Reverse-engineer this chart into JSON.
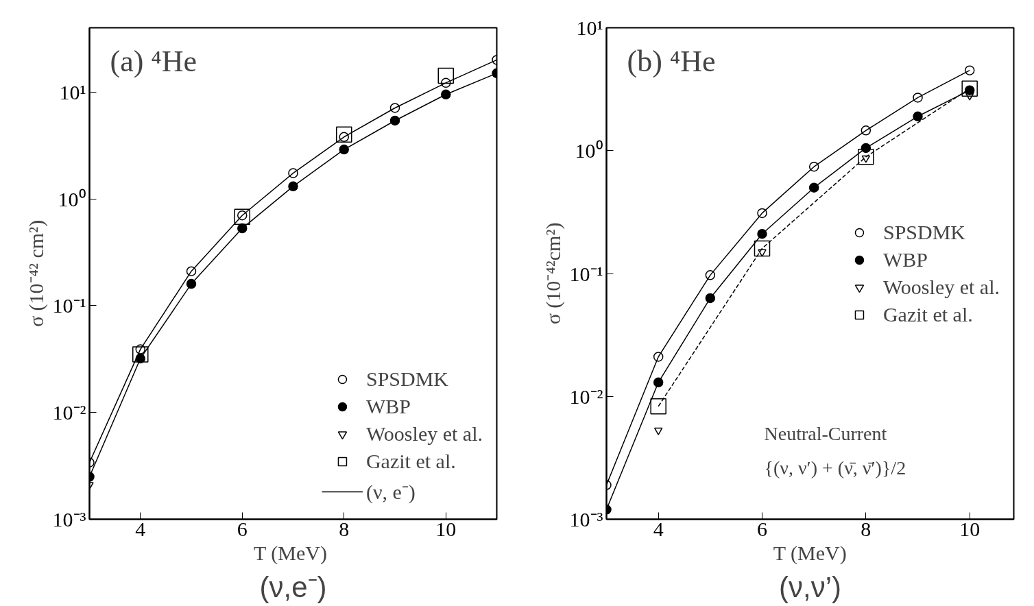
{
  "chart_data": [
    {
      "type": "scatter",
      "title": "(ν,e⁻)",
      "xlabel": "T  (MeV)",
      "ylabel": "σ (10⁻⁴² cm²)",
      "log": "y",
      "annotations": [
        "(a)  ⁴He"
      ],
      "xlim": [
        3,
        11
      ],
      "xticks": [
        4,
        6,
        8,
        10
      ],
      "ylim": [
        0.001,
        40
      ],
      "yticks": [
        {
          "value": 0.001,
          "label": "10⁻³"
        },
        {
          "value": 0.01,
          "label": "10⁻²"
        },
        {
          "value": 0.1,
          "label": "10⁻¹"
        },
        {
          "value": 1,
          "label": "10⁰"
        },
        {
          "value": 10,
          "label": "10¹"
        }
      ],
      "grid": false,
      "legend": "bottom right",
      "series": [
        {
          "name": "SPSDMK",
          "marker": "circle",
          "color": "#000000",
          "x": [
            3,
            4,
            5,
            6,
            7,
            8,
            9,
            10,
            11
          ],
          "values": [
            0.0034,
            0.039,
            0.21,
            0.7,
            1.74,
            3.8,
            7.1,
            12.2,
            20
          ]
        },
        {
          "name": "WBP",
          "marker": "circle",
          "color": "#000000",
          "x": [
            3,
            4,
            5,
            6,
            7,
            8,
            9,
            10,
            11
          ],
          "values": [
            0.0025,
            0.032,
            0.16,
            0.53,
            1.31,
            2.9,
            5.4,
            9.5,
            15
          ]
        },
        {
          "name": "Woosley et al.",
          "marker": "triangle",
          "color": "#000000",
          "x": [
            3
          ],
          "values": [
            0.0021
          ]
        },
        {
          "name": "Gazit et al.",
          "marker": "square",
          "color": "#000000",
          "x": [
            4,
            6,
            8,
            10
          ],
          "values": [
            0.035,
            0.68,
            4.0,
            14.2
          ]
        },
        {
          "name": "(ν, e⁻)",
          "type": "line",
          "line_style": "solid",
          "color": "#000000",
          "x": [
            3,
            4,
            5,
            6,
            7,
            8,
            9,
            10,
            11
          ],
          "values": [
            0.0034,
            0.039,
            0.21,
            0.7,
            1.74,
            3.8,
            7.1,
            12.2,
            20
          ]
        },
        {
          "type": "line",
          "line_style": "solid",
          "color": "#000000",
          "x": [
            3,
            4,
            5,
            6,
            7,
            8,
            9,
            10,
            11
          ],
          "values": [
            0.0025,
            0.032,
            0.16,
            0.53,
            1.31,
            2.9,
            5.4,
            9.5,
            15
          ]
        }
      ]
    },
    {
      "type": "scatter",
      "title": "(ν,ν’)",
      "xlabel": "T (MeV)",
      "ylabel": "σ (10⁻⁴²cm²)",
      "log": "y",
      "annotations": [
        "(b)  ⁴He",
        "Neutral-Current",
        "{(ν, ν′) + (ν̄, ν̄′)}/2"
      ],
      "xlim": [
        3,
        10.85
      ],
      "xticks": [
        4,
        6,
        8,
        10
      ],
      "ylim": [
        0.001,
        10
      ],
      "yticks": [
        {
          "value": 0.001,
          "label": "10⁻³"
        },
        {
          "value": 0.01,
          "label": "10⁻²"
        },
        {
          "value": 0.1,
          "label": "10⁻¹"
        },
        {
          "value": 1,
          "label": "10⁰"
        },
        {
          "value": 10,
          "label": "10¹"
        }
      ],
      "grid": false,
      "legend": "right",
      "series": [
        {
          "name": "SPSDMK",
          "marker": "circle",
          "color": "#000000",
          "x": [
            3,
            4,
            5,
            6,
            7,
            8,
            9,
            10
          ],
          "values": [
            0.0019,
            0.021,
            0.097,
            0.31,
            0.74,
            1.46,
            2.7,
            4.5
          ]
        },
        {
          "name": "WBP",
          "marker": "circle",
          "color": "#000000",
          "x": [
            3,
            4,
            5,
            6,
            7,
            8,
            9,
            10
          ],
          "values": [
            0.0012,
            0.013,
            0.063,
            0.21,
            0.5,
            1.05,
            1.9,
            3.1
          ]
        },
        {
          "name": "Woosley et al.",
          "marker": "triangle",
          "color": "#000000",
          "x": [
            4,
            6,
            8,
            10
          ],
          "values": [
            0.0053,
            0.15,
            0.87,
            2.8
          ]
        },
        {
          "name": "Gazit et al.",
          "marker": "square",
          "color": "#000000",
          "x": [
            4,
            6,
            8,
            10
          ],
          "values": [
            0.0083,
            0.16,
            0.89,
            3.2
          ]
        },
        {
          "type": "line",
          "line_style": "solid",
          "color": "#000000",
          "x": [
            3,
            4,
            5,
            6,
            7,
            8,
            9,
            10
          ],
          "values": [
            0.0019,
            0.021,
            0.097,
            0.31,
            0.74,
            1.46,
            2.7,
            4.5
          ]
        },
        {
          "type": "line",
          "line_style": "solid",
          "color": "#000000",
          "x": [
            3,
            4,
            5,
            6,
            7,
            8,
            9,
            10
          ],
          "values": [
            0.0012,
            0.013,
            0.063,
            0.21,
            0.5,
            1.05,
            1.9,
            3.1
          ]
        },
        {
          "type": "line",
          "line_style": "dashed",
          "color": "#000000",
          "x": [
            4,
            6,
            8,
            10
          ],
          "values": [
            0.0083,
            0.16,
            0.89,
            3.2
          ]
        }
      ]
    }
  ]
}
